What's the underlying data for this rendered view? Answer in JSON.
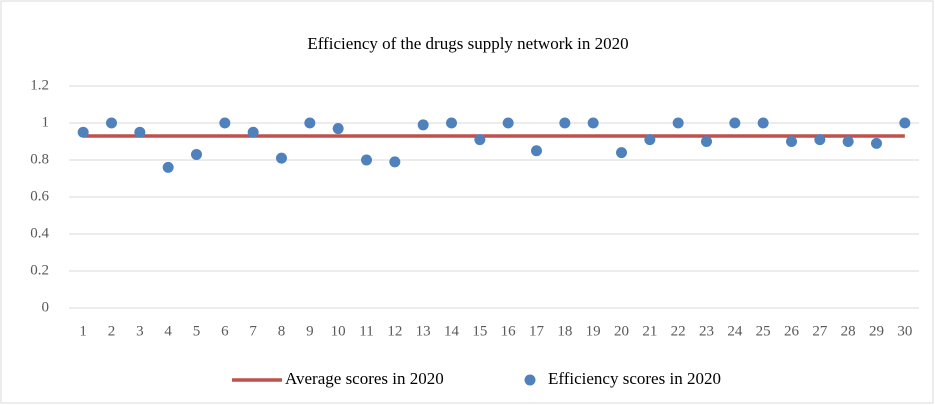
{
  "chart_data": {
    "type": "scatter",
    "title": "Efficiency of the drugs supply network in 2020",
    "categories": [
      "1",
      "2",
      "3",
      "4",
      "5",
      "6",
      "7",
      "8",
      "9",
      "10",
      "11",
      "12",
      "13",
      "14",
      "15",
      "16",
      "17",
      "18",
      "19",
      "20",
      "21",
      "22",
      "23",
      "24",
      "25",
      "26",
      "27",
      "28",
      "29",
      "30"
    ],
    "series": [
      {
        "name": "Average scores in 2020",
        "type": "line",
        "color": "#c0504d",
        "values": [
          0.93,
          0.93,
          0.93,
          0.93,
          0.93,
          0.93,
          0.93,
          0.93,
          0.93,
          0.93,
          0.93,
          0.93,
          0.93,
          0.93,
          0.93,
          0.93,
          0.93,
          0.93,
          0.93,
          0.93,
          0.93,
          0.93,
          0.93,
          0.93,
          0.93,
          0.93,
          0.93,
          0.93,
          0.93,
          0.93
        ]
      },
      {
        "name": "Efficiency scores in 2020",
        "type": "scatter",
        "color": "#4f81bd",
        "values": [
          0.95,
          1,
          0.95,
          0.76,
          0.83,
          1,
          0.95,
          0.81,
          1,
          0.97,
          0.8,
          0.79,
          0.99,
          1,
          0.91,
          1,
          0.85,
          1,
          1,
          0.84,
          0.91,
          1,
          0.9,
          1,
          1,
          0.9,
          0.91,
          0.9,
          0.89,
          1
        ]
      }
    ],
    "ylim": [
      0,
      1.2
    ],
    "yticks": [
      0,
      0.2,
      0.4,
      0.6,
      0.8,
      1,
      1.2
    ],
    "grid": true,
    "legend": "bottom"
  }
}
